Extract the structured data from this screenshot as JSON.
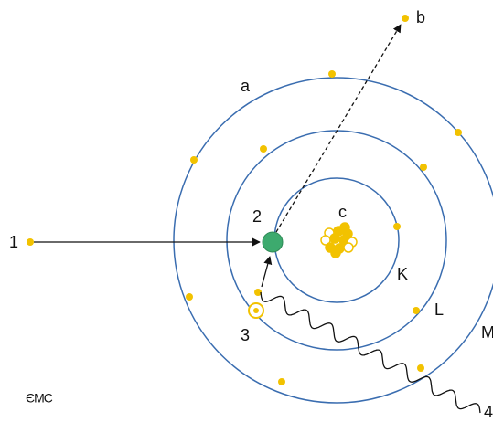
{
  "labels": {
    "a": "a",
    "b": "b",
    "c": "c",
    "one": "1",
    "two": "2",
    "three": "3",
    "four": "4",
    "K": "K",
    "L": "L",
    "M": "M",
    "logo": "ЄMC"
  }
}
